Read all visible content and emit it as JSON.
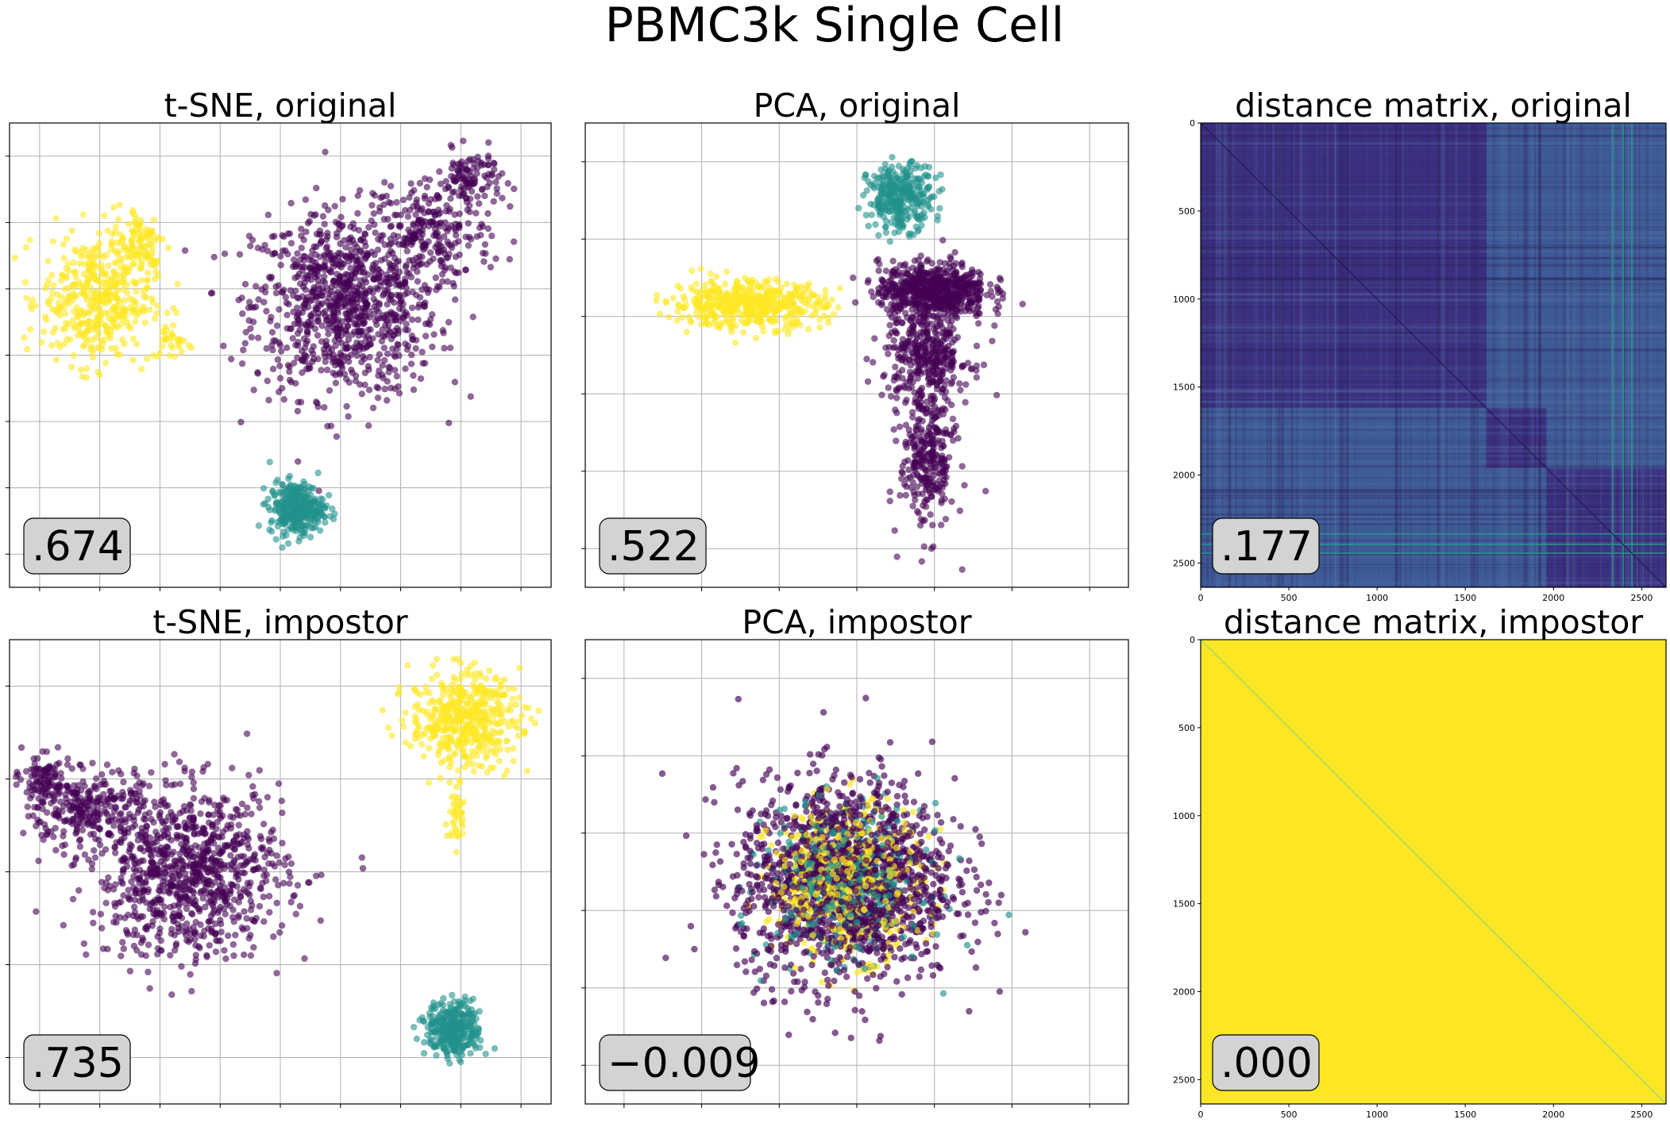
{
  "figure": {
    "title": "PBMC3k Single Cell"
  },
  "palette": {
    "c0": "#440154",
    "c1": "#21918c",
    "c2": "#fde725"
  },
  "chart_data": [
    {
      "id": "tsne-original",
      "type": "scatter",
      "title": "t-SNE, original",
      "score": ".674",
      "xlim": [
        0,
        1
      ],
      "ylim": [
        0,
        1
      ],
      "x_tick_count": 9,
      "y_tick_count": 7,
      "tick_labels": false,
      "grid": true,
      "series": [
        {
          "name": "",
          "color": "c0",
          "clusters": [
            {
              "cx": 0.62,
              "cy": 0.61,
              "sx": 0.085,
              "sy": 0.1,
              "n": 950
            },
            {
              "cx": 0.78,
              "cy": 0.76,
              "sx": 0.055,
              "sy": 0.05,
              "n": 220
            },
            {
              "cx": 0.85,
              "cy": 0.88,
              "sx": 0.03,
              "sy": 0.03,
              "n": 110
            }
          ]
        },
        {
          "name": "",
          "color": "c2",
          "clusters": [
            {
              "cx": 0.16,
              "cy": 0.62,
              "sx": 0.05,
              "sy": 0.07,
              "n": 420
            },
            {
              "cx": 0.24,
              "cy": 0.74,
              "sx": 0.025,
              "sy": 0.04,
              "n": 100
            },
            {
              "cx": 0.3,
              "cy": 0.53,
              "sx": 0.02,
              "sy": 0.02,
              "n": 30
            }
          ]
        },
        {
          "name": "",
          "color": "c1",
          "clusters": [
            {
              "cx": 0.53,
              "cy": 0.17,
              "sx": 0.025,
              "sy": 0.028,
              "n": 320
            }
          ]
        }
      ]
    },
    {
      "id": "pca-original",
      "type": "scatter",
      "title": "PCA, original",
      "score": ".522",
      "xlim": [
        0,
        1
      ],
      "ylim": [
        0,
        1
      ],
      "x_tick_count": 7,
      "y_tick_count": 6,
      "tick_labels": false,
      "grid": true,
      "series": [
        {
          "name": "",
          "color": "c0",
          "clusters": [
            {
              "cx": 0.64,
              "cy": 0.64,
              "sx": 0.05,
              "sy": 0.03,
              "n": 650
            },
            {
              "cx": 0.63,
              "cy": 0.5,
              "sx": 0.04,
              "sy": 0.05,
              "n": 350
            },
            {
              "cx": 0.63,
              "cy": 0.28,
              "sx": 0.025,
              "sy": 0.08,
              "n": 300
            }
          ]
        },
        {
          "name": "",
          "color": "c1",
          "clusters": [
            {
              "cx": 0.58,
              "cy": 0.84,
              "sx": 0.03,
              "sy": 0.035,
              "n": 320
            }
          ]
        },
        {
          "name": "",
          "color": "c2",
          "clusters": [
            {
              "cx": 0.3,
              "cy": 0.61,
              "sx": 0.07,
              "sy": 0.025,
              "n": 520
            }
          ]
        }
      ]
    },
    {
      "id": "distance-original",
      "type": "heatmap",
      "title": "distance matrix, original",
      "score": ".177",
      "xlim": [
        0,
        2638
      ],
      "ylim": [
        2638,
        0
      ],
      "x_ticks": [
        0,
        500,
        1000,
        1500,
        2000,
        2500
      ],
      "y_ticks": [
        0,
        500,
        1000,
        1500,
        2000,
        2500
      ],
      "blocks": [
        0,
        1620,
        1960,
        2638
      ],
      "colors": {
        "within": "#3b2f80",
        "between": "#3d5a96",
        "stripe": "#2a9a8c"
      }
    },
    {
      "id": "tsne-impostor",
      "type": "scatter",
      "title": "t-SNE, impostor",
      "score": ".735",
      "xlim": [
        0,
        1
      ],
      "ylim": [
        0,
        1
      ],
      "x_tick_count": 9,
      "y_tick_count": 5,
      "tick_labels": false,
      "grid": true,
      "series": [
        {
          "name": "",
          "color": "c0",
          "clusters": [
            {
              "cx": 0.33,
              "cy": 0.5,
              "sx": 0.09,
              "sy": 0.09,
              "n": 950
            },
            {
              "cx": 0.14,
              "cy": 0.64,
              "sx": 0.05,
              "sy": 0.04,
              "n": 260
            },
            {
              "cx": 0.06,
              "cy": 0.7,
              "sx": 0.02,
              "sy": 0.025,
              "n": 80
            }
          ]
        },
        {
          "name": "",
          "color": "c2",
          "clusters": [
            {
              "cx": 0.84,
              "cy": 0.83,
              "sx": 0.05,
              "sy": 0.05,
              "n": 480
            },
            {
              "cx": 0.825,
              "cy": 0.63,
              "sx": 0.008,
              "sy": 0.04,
              "n": 40
            }
          ]
        },
        {
          "name": "",
          "color": "c1",
          "clusters": [
            {
              "cx": 0.82,
              "cy": 0.16,
              "sx": 0.025,
              "sy": 0.03,
              "n": 320
            }
          ]
        }
      ]
    },
    {
      "id": "pca-impostor",
      "type": "scatter",
      "title": "PCA, impostor",
      "score": "−0.009",
      "xlim": [
        0,
        1
      ],
      "ylim": [
        0,
        1
      ],
      "x_tick_count": 7,
      "y_tick_count": 6,
      "tick_labels": false,
      "grid": true,
      "series": [
        {
          "name": "",
          "color": "c0",
          "clusters": [
            {
              "cx": 0.48,
              "cy": 0.48,
              "sx": 0.1,
              "sy": 0.11,
              "n": 1500
            }
          ]
        },
        {
          "name": "",
          "color": "c1",
          "clusters": [
            {
              "cx": 0.48,
              "cy": 0.48,
              "sx": 0.07,
              "sy": 0.08,
              "n": 450
            }
          ]
        },
        {
          "name": "",
          "color": "c2",
          "clusters": [
            {
              "cx": 0.48,
              "cy": 0.48,
              "sx": 0.07,
              "sy": 0.08,
              "n": 550
            }
          ]
        }
      ]
    },
    {
      "id": "distance-impostor",
      "type": "heatmap",
      "title": "distance matrix, impostor",
      "score": ".000",
      "xlim": [
        0,
        2638
      ],
      "ylim": [
        2638,
        0
      ],
      "x_ticks": [
        0,
        500,
        1000,
        1500,
        2000,
        2500
      ],
      "y_ticks": [
        0,
        500,
        1000,
        1500,
        2000,
        2500
      ],
      "blocks": [
        0,
        2638
      ],
      "colors": {
        "within": "#fde725",
        "between": "#fde725",
        "diagonal": "#9fd96a"
      }
    }
  ]
}
